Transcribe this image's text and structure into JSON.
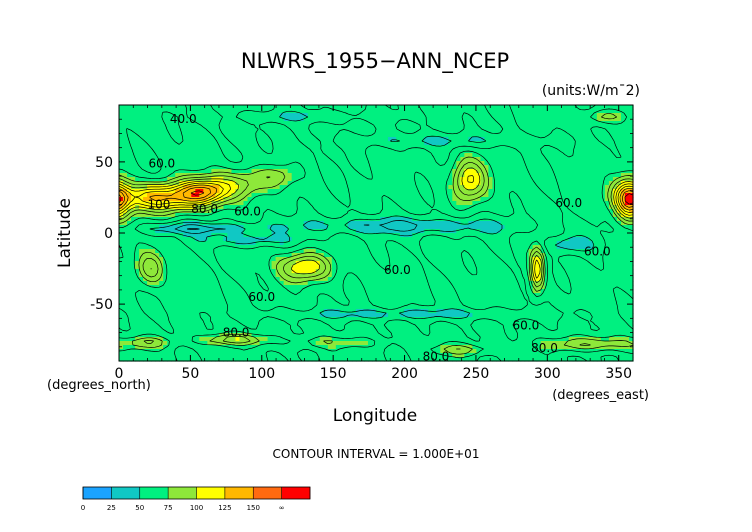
{
  "chart_data": {
    "type": "heatmap",
    "title": "NLWRS_1955−ANN_NCEP",
    "units_label": "(units:W/m¯2)",
    "xlabel": "Longitude",
    "ylabel": "Latitude",
    "x_unit_label": "(degrees_east)",
    "y_unit_label": "(degrees_north)",
    "xlim": [
      0,
      360
    ],
    "ylim": [
      -90,
      90
    ],
    "x_ticks": [
      0,
      50,
      100,
      150,
      200,
      250,
      300,
      350
    ],
    "y_ticks": [
      50,
      0,
      -50
    ],
    "contour_interval_text": "CONTOUR INTERVAL = 1.000E+01",
    "contour_labels": [
      {
        "text": "40.0",
        "lon": 45,
        "lat": 80
      },
      {
        "text": "60.0",
        "lon": 30,
        "lat": 49
      },
      {
        "text": "100",
        "lon": 28,
        "lat": 20
      },
      {
        "text": "80.0",
        "lon": 60,
        "lat": 17
      },
      {
        "text": "60.0",
        "lon": 90,
        "lat": 15
      },
      {
        "text": "60.0",
        "lon": 315,
        "lat": 21
      },
      {
        "text": "60.0",
        "lon": 335,
        "lat": -13
      },
      {
        "text": "60.0",
        "lon": 195,
        "lat": -26
      },
      {
        "text": "60.0",
        "lon": 100,
        "lat": -45
      },
      {
        "text": "60.0",
        "lon": 285,
        "lat": -65
      },
      {
        "text": "80.0",
        "lon": 82,
        "lat": -70
      },
      {
        "text": "80.0",
        "lon": 222,
        "lat": -87
      },
      {
        "text": "80.0",
        "lon": 298,
        "lat": -81
      }
    ],
    "fields": {
      "background_value": 62,
      "blobs": [
        {
          "lon": 30,
          "lat": 25,
          "rx": 34,
          "ry": 10,
          "peak": 132
        },
        {
          "lon": 60,
          "lat": 30,
          "rx": 16,
          "ry": 9,
          "peak": 120
        },
        {
          "lon": 85,
          "lat": 35,
          "rx": 18,
          "ry": 10,
          "peak": 95
        },
        {
          "lon": 110,
          "lat": 40,
          "rx": 14,
          "ry": 8,
          "peak": 82
        },
        {
          "lon": 245,
          "lat": 37,
          "rx": 12,
          "ry": 15,
          "peak": 112
        },
        {
          "lon": 357,
          "lat": 24,
          "rx": 10,
          "ry": 15,
          "peak": 130
        },
        {
          "lon": 130,
          "lat": -24,
          "rx": 18,
          "ry": 10,
          "peak": 112
        },
        {
          "lon": 22,
          "lat": -25,
          "rx": 10,
          "ry": 12,
          "peak": 98
        },
        {
          "lon": 293,
          "lat": -26,
          "rx": 5,
          "ry": 16,
          "peak": 118
        },
        {
          "lon": 80,
          "lat": -75,
          "rx": 24,
          "ry": 4,
          "peak": 96
        },
        {
          "lon": 150,
          "lat": -77,
          "rx": 35,
          "ry": 4,
          "peak": 78
        },
        {
          "lon": 240,
          "lat": -82,
          "rx": 20,
          "ry": 4,
          "peak": 86
        },
        {
          "lon": 330,
          "lat": -78,
          "rx": 30,
          "ry": 5,
          "peak": 92
        },
        {
          "lon": 20,
          "lat": -77,
          "rx": 15,
          "ry": 4,
          "peak": 88
        },
        {
          "lon": 340,
          "lat": 82,
          "rx": 15,
          "ry": 5,
          "peak": 84
        },
        {
          "lon": 55,
          "lat": 3,
          "rx": 40,
          "ry": 4,
          "peak": 35
        },
        {
          "lon": 200,
          "lat": 5,
          "rx": 75,
          "ry": 6,
          "peak": 38
        },
        {
          "lon": 315,
          "lat": -8,
          "rx": 18,
          "ry": 6,
          "peak": 42
        },
        {
          "lon": 90,
          "lat": -5,
          "rx": 30,
          "ry": 4,
          "peak": 42
        },
        {
          "lon": 230,
          "lat": 65,
          "rx": 70,
          "ry": 5,
          "peak": 48
        },
        {
          "lon": 200,
          "lat": -57,
          "rx": 95,
          "ry": 4,
          "peak": 45
        },
        {
          "lon": 130,
          "lat": 82,
          "rx": 60,
          "ry": 4,
          "peak": 50
        }
      ]
    },
    "colorbar": {
      "levels": [
        0,
        25,
        50,
        75,
        100,
        125,
        150
      ],
      "tick_labels": [
        "0",
        "25",
        "50",
        "75",
        "100",
        "125",
        "150",
        "∞"
      ],
      "colors": [
        "#1aa3ff",
        "#10c8c4",
        "#00f080",
        "#8ee83a",
        "#ffff00",
        "#ffb800",
        "#ff6a10",
        "#ff0000"
      ]
    },
    "grid": false,
    "legend": "bottom-left colorbar"
  }
}
